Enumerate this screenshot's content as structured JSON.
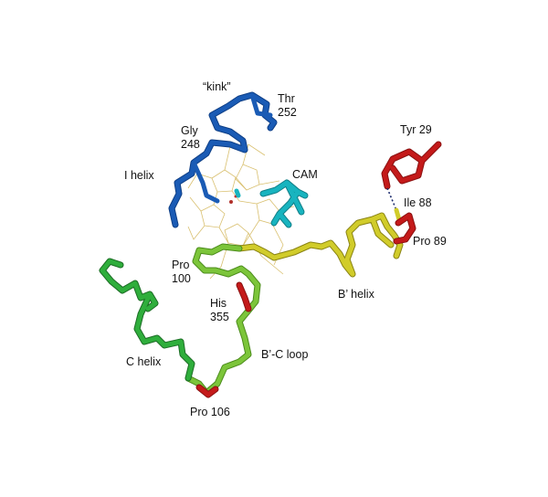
{
  "labels": {
    "kink": "“kink”",
    "thr_name": "Thr",
    "thr_num": "252",
    "gly_name": "Gly",
    "gly_num": "248",
    "i_helix": "I helix",
    "cam": "CAM",
    "tyr29": "Tyr 29",
    "ile88": "Ile 88",
    "pro89": "Pro 89",
    "pro100_name": "Pro",
    "pro100_num": "100",
    "his_name": "His",
    "his_num": "355",
    "b_prime_helix": "B’ helix",
    "b_c_loop": "B’-C loop",
    "c_helix": "C helix",
    "pro106": "Pro 106"
  },
  "colors": {
    "i_helix": "#1a5bb5",
    "i_helix_dark": "#0f3f86",
    "cam": "#18b4bf",
    "b_helix": "#d1cc2a",
    "b_helix_dark": "#8a8414",
    "bc_loop": "#7cc53a",
    "bc_loop_dark": "#4c8c1c",
    "c_helix": "#2fae3c",
    "c_helix_dark": "#1c6d25",
    "proline": "#c41a1a",
    "tyrosine": "#c41a1a",
    "heme": "#d9c070",
    "hbond": "#1a2a6c"
  }
}
